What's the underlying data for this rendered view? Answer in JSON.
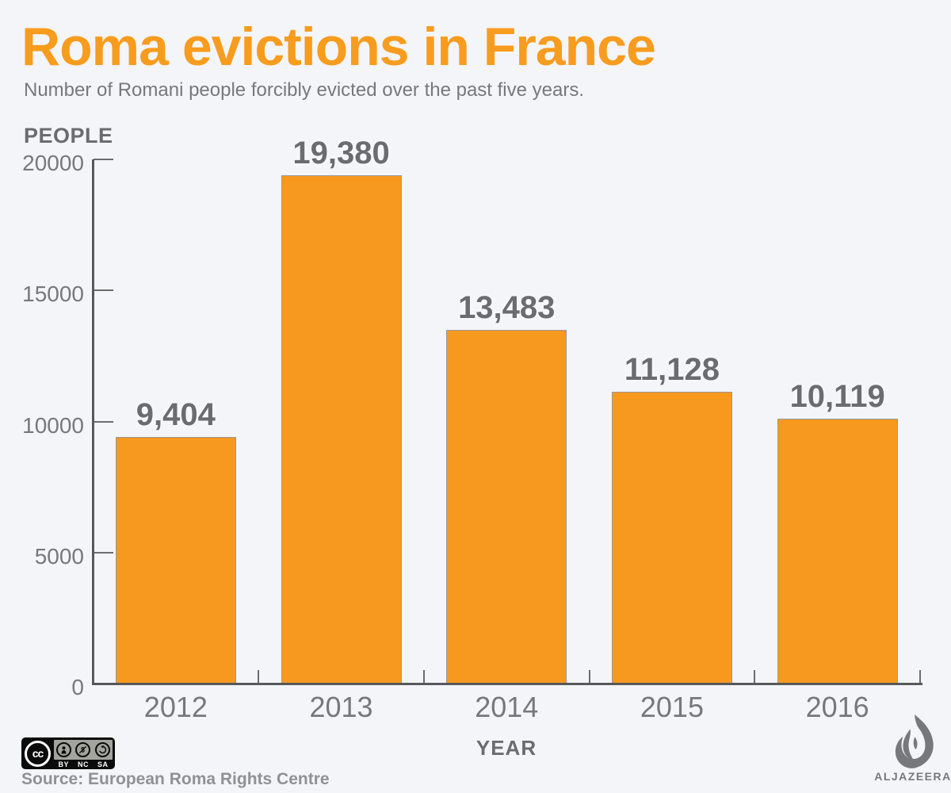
{
  "header": {
    "title": "Roma evictions in France",
    "subtitle": "Number of Romani people forcibly evicted over the past five years."
  },
  "chart_data": {
    "type": "bar",
    "title": "Roma evictions in France",
    "categories": [
      "2012",
      "2013",
      "2014",
      "2015",
      "2016"
    ],
    "values": [
      9404,
      19380,
      13483,
      11128,
      10119
    ],
    "value_labels": [
      "9,404",
      "19,380",
      "13,483",
      "11,128",
      "10,119"
    ],
    "xlabel": "YEAR",
    "ylabel": "PEOPLE",
    "ylim": [
      0,
      20000
    ],
    "ytick_step": 5000,
    "ytick_labels": [
      "0",
      "5000",
      "10000",
      "15000",
      "20000"
    ],
    "bar_color": "#F7991E",
    "grid": false,
    "legend": "none"
  },
  "footer": {
    "license": {
      "cc_text": "cc",
      "labels": [
        "BY",
        "NC",
        "SA"
      ],
      "icons": [
        "cc-icon",
        "by-person-icon",
        "nc-no-dollar-icon",
        "sa-share-alike-icon"
      ]
    },
    "source": "Source: European Roma Rights Centre",
    "brand": "ALJAZEERA",
    "brand_logo": "aljazeera-flame-icon"
  },
  "colors": {
    "accent_orange": "#F7991E",
    "background": "#F4F5F8",
    "text_dark_gray": "#6B6C6F",
    "text_medium_gray": "#77787B",
    "axis_gray": "#57585A"
  }
}
